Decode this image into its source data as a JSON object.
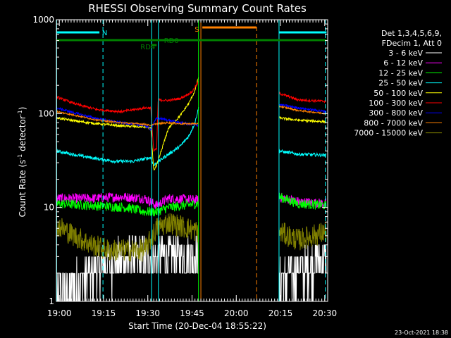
{
  "chart_data": {
    "type": "line",
    "title": "RHESSI Observing Summary Count Rates",
    "xlabel": "Start Time (20-Dec-04 18:55:22)",
    "ylabel_parts": [
      "Count Rate (s",
      "-1",
      " detector",
      "-1",
      ")"
    ],
    "yscale": "log",
    "ylim": [
      1,
      1000
    ],
    "y_ticks": [
      {
        "value": 1,
        "label": "1"
      },
      {
        "value": 10,
        "label": "10"
      },
      {
        "value": 100,
        "label": "100"
      },
      {
        "value": 1000,
        "label": "1000"
      }
    ],
    "xlim": [
      18.0,
      110.0
    ],
    "x_ticks": [
      {
        "value": 19,
        "label": "19:00"
      },
      {
        "value": 34,
        "label": "19:15"
      },
      {
        "value": 49,
        "label": "19:30"
      },
      {
        "value": 64,
        "label": "19:45"
      },
      {
        "value": 79,
        "label": "20:00"
      },
      {
        "value": 94,
        "label": "20:15"
      },
      {
        "value": 109,
        "label": "20:30"
      }
    ],
    "x_minor_step": 1,
    "legend_header": [
      "Det 1,3,4,5,6,9,",
      "FDecim 1, Att 0"
    ],
    "legend_position": "right",
    "timestamp": "23-Oct-2021 18:38",
    "bands": [
      {
        "name": "3 - 6 keV",
        "color": "#ffffff",
        "noise": 0.55,
        "quant": true,
        "segments": [
          [
            [
              18.1,
              1.2
            ],
            [
              24,
              1.5
            ],
            [
              30,
              2.0
            ],
            [
              36,
              2.5
            ],
            [
              42,
              2.8
            ],
            [
              48,
              3.0
            ],
            [
              54,
              3.0
            ],
            [
              60,
              3.0
            ],
            [
              66.2,
              3.0
            ]
          ],
          [
            [
              93.5,
              1.5
            ],
            [
              99,
              2.0
            ],
            [
              105,
              2.5
            ],
            [
              109.5,
              3.0
            ]
          ]
        ]
      },
      {
        "name": "6 - 12 keV",
        "color": "#ff00ff",
        "noise": 0.12,
        "quant": false,
        "segments": [
          [
            [
              18.1,
              12.5
            ],
            [
              30,
              12.5
            ],
            [
              40,
              13.0
            ],
            [
              48,
              12.5
            ],
            [
              52,
              10.5
            ],
            [
              56,
              12.5
            ],
            [
              66.2,
              12.0
            ]
          ],
          [
            [
              93.5,
              13.0
            ],
            [
              100,
              11.5
            ],
            [
              109.5,
              11.0
            ]
          ]
        ]
      },
      {
        "name": "12 - 25 keV",
        "color": "#00ff00",
        "noise": 0.12,
        "quant": false,
        "segments": [
          [
            [
              18.1,
              11.0
            ],
            [
              30,
              10.5
            ],
            [
              42,
              10.0
            ],
            [
              48,
              9.0
            ],
            [
              52,
              9.0
            ],
            [
              56,
              10.0
            ],
            [
              66.2,
              11.0
            ]
          ],
          [
            [
              93.5,
              13.0
            ],
            [
              100,
              11.0
            ],
            [
              109.5,
              10.5
            ]
          ]
        ]
      },
      {
        "name": "25 - 50 keV",
        "color": "#00ffff",
        "noise": 0.04,
        "quant": false,
        "segments": [
          [
            [
              18.1,
              40
            ],
            [
              25,
              36
            ],
            [
              32,
              33
            ],
            [
              38,
              31
            ],
            [
              44,
              31
            ],
            [
              48,
              33
            ],
            [
              50,
              34
            ],
            [
              51,
              28
            ],
            [
              52,
              30
            ],
            [
              56,
              37
            ],
            [
              60,
              45
            ],
            [
              63,
              58
            ],
            [
              65,
              80
            ],
            [
              66.2,
              115
            ]
          ],
          [
            [
              93.5,
              40
            ],
            [
              100,
              37
            ],
            [
              109.5,
              36
            ]
          ]
        ]
      },
      {
        "name": "50 - 100 keV",
        "color": "#ffff00",
        "noise": 0.03,
        "quant": false,
        "segments": [
          [
            [
              18.1,
              90
            ],
            [
              25,
              83
            ],
            [
              32,
              78
            ],
            [
              40,
              74
            ],
            [
              48,
              72
            ],
            [
              50,
              70
            ],
            [
              51,
              25
            ],
            [
              52,
              28
            ],
            [
              56,
              70
            ],
            [
              60,
              95
            ],
            [
              63,
              130
            ],
            [
              65,
              175
            ],
            [
              66.2,
              245
            ]
          ],
          [
            [
              93.5,
              90
            ],
            [
              100,
              85
            ],
            [
              109.5,
              82
            ]
          ]
        ]
      },
      {
        "name": "100 - 300 keV",
        "color": "#ff0000",
        "noise": 0.03,
        "quant": false,
        "segments": [
          [
            [
              18.1,
              150
            ],
            [
              25,
              125
            ],
            [
              32,
              110
            ],
            [
              40,
              105
            ],
            [
              48,
              115
            ],
            [
              50,
              115
            ],
            [
              51,
              40
            ],
            [
              52,
              42
            ],
            [
              52.5,
              140
            ],
            [
              56,
              138
            ],
            [
              60,
              145
            ],
            [
              64,
              170
            ],
            [
              66.2,
              220
            ]
          ],
          [
            [
              93.5,
              165
            ],
            [
              100,
              140
            ],
            [
              109.5,
              135
            ]
          ]
        ]
      },
      {
        "name": "300 - 800 keV",
        "color": "#0000ff",
        "noise": 0.03,
        "quant": false,
        "segments": [
          [
            [
              18.1,
              115
            ],
            [
              25,
              100
            ],
            [
              32,
              88
            ],
            [
              40,
              80
            ],
            [
              48,
              75
            ],
            [
              50,
              68
            ],
            [
              52,
              90
            ],
            [
              56,
              85
            ],
            [
              60,
              80
            ],
            [
              66.2,
              75
            ]
          ],
          [
            [
              93.5,
              125
            ],
            [
              100,
              115
            ],
            [
              109.5,
              105
            ]
          ]
        ]
      },
      {
        "name": "800 - 7000 keV",
        "color": "#ff8000",
        "noise": 0.02,
        "quant": false,
        "segments": [
          [
            [
              18.1,
              105
            ],
            [
              25,
              95
            ],
            [
              32,
              85
            ],
            [
              40,
              80
            ],
            [
              48,
              77
            ],
            [
              50,
              75
            ],
            [
              52,
              78
            ],
            [
              56,
              80
            ],
            [
              60,
              78
            ],
            [
              66.2,
              78
            ]
          ],
          [
            [
              93.5,
              120
            ],
            [
              100,
              108
            ],
            [
              109.5,
              100
            ]
          ]
        ]
      },
      {
        "name": "7000 - 15000 keV",
        "color": "#808000",
        "noise": 0.28,
        "quant": false,
        "segments": [
          [
            [
              18.1,
              6.5
            ],
            [
              24,
              5.0
            ],
            [
              30,
              4.0
            ],
            [
              36,
              3.5
            ],
            [
              42,
              3.5
            ],
            [
              48,
              3.5
            ],
            [
              52,
              6.0
            ],
            [
              56,
              7.0
            ],
            [
              66.2,
              5.5
            ]
          ],
          [
            [
              93.5,
              5.5
            ],
            [
              100,
              4.5
            ],
            [
              109.5,
              5.5
            ]
          ]
        ]
      }
    ],
    "event_lines": [
      {
        "x": 18.1,
        "color": "#00ffff",
        "style": "solid"
      },
      {
        "x": 33.8,
        "color": "#00ffff",
        "style": "dashed"
      },
      {
        "x": 50.3,
        "color": "#00ffff",
        "style": "solid"
      },
      {
        "x": 52.6,
        "color": "#00ffff",
        "style": "solid"
      },
      {
        "x": 93.5,
        "color": "#00ffff",
        "style": "solid"
      },
      {
        "x": 109.2,
        "color": "#00ffff",
        "style": "dashed"
      },
      {
        "x": 66.2,
        "color": "#00ff00",
        "style": "solid"
      },
      {
        "x": 67.0,
        "color": "#ff8000",
        "style": "solid"
      },
      {
        "x": 85.9,
        "color": "#ff8000",
        "style": "dashed"
      }
    ],
    "flag_bars": [
      {
        "x0": 18.1,
        "x1": 32.6,
        "y": 46,
        "color": "#00ffff",
        "label": "N",
        "label_x": 33.5
      },
      {
        "x0": 93.5,
        "x1": 109.6,
        "y": 46,
        "color": "#00ffff",
        "label": "",
        "label_x": 0
      },
      {
        "x0": 18.1,
        "x1": 109.6,
        "y": 57,
        "color": "#008000",
        "label": "RD0",
        "label_x": 54.5
      },
      {
        "x0": 50.1,
        "x1": 52.0,
        "y": 64,
        "color": "#008000",
        "label": "RD4",
        "label_x": 46.5
      },
      {
        "x0": 67.5,
        "x1": 85.8,
        "y": 39,
        "color": "#ff8000",
        "label": "S",
        "label_x": 64.9
      }
    ]
  }
}
